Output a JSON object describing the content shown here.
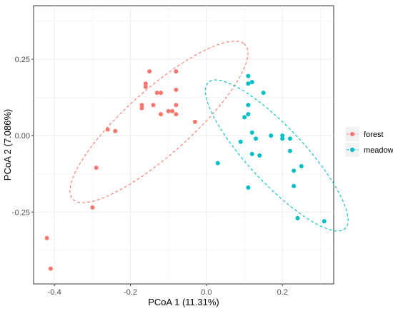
{
  "chart_data": {
    "type": "scatter",
    "xlabel": "PCoA 1 (11.31%)",
    "ylabel": "PCoA 2 (7.086%)",
    "xlim": [
      -0.455,
      0.335
    ],
    "ylim": [
      -0.485,
      0.425
    ],
    "x_ticks": [
      -0.4,
      -0.2,
      0.0,
      0.2
    ],
    "x_tick_labels": [
      "-0.4",
      "-0.2",
      "0.0",
      "0.2"
    ],
    "y_ticks": [
      -0.25,
      0.0,
      0.25
    ],
    "y_tick_labels": [
      "-0.25",
      "0.00",
      "0.25"
    ],
    "grid": true,
    "legend_position": "right",
    "series": [
      {
        "name": "forest",
        "color": "#F8766D",
        "points": [
          [
            -0.15,
            0.21
          ],
          [
            -0.08,
            0.21
          ],
          [
            -0.16,
            0.17
          ],
          [
            -0.13,
            0.14
          ],
          [
            -0.12,
            0.14
          ],
          [
            -0.08,
            0.15
          ],
          [
            -0.16,
            0.16
          ],
          [
            -0.14,
            0.1
          ],
          [
            -0.17,
            0.09
          ],
          [
            -0.17,
            0.1
          ],
          [
            -0.08,
            0.1
          ],
          [
            -0.09,
            0.08
          ],
          [
            -0.1,
            0.08
          ],
          [
            -0.12,
            0.07
          ],
          [
            -0.08,
            0.07
          ],
          [
            -0.03,
            0.045
          ],
          [
            -0.26,
            0.02
          ],
          [
            -0.24,
            0.015
          ],
          [
            -0.29,
            -0.105
          ],
          [
            -0.3,
            -0.235
          ],
          [
            -0.42,
            -0.335
          ],
          [
            -0.41,
            -0.435
          ]
        ],
        "ellipse": {
          "cx": -0.125,
          "cy": 0.045,
          "rx": 0.34,
          "ry": 0.095,
          "angle_deg": 49
        }
      },
      {
        "name": "meadow",
        "color": "#00BFC4",
        "points": [
          [
            0.11,
            0.195
          ],
          [
            0.11,
            0.17
          ],
          [
            0.12,
            0.175
          ],
          [
            0.15,
            0.14
          ],
          [
            0.11,
            0.1
          ],
          [
            0.11,
            0.07
          ],
          [
            0.1,
            0.06
          ],
          [
            0.12,
            0.01
          ],
          [
            0.17,
            0.0
          ],
          [
            0.2,
            0.0
          ],
          [
            0.2,
            -0.01
          ],
          [
            0.22,
            -0.01
          ],
          [
            0.13,
            -0.01
          ],
          [
            0.09,
            -0.02
          ],
          [
            0.22,
            -0.05
          ],
          [
            0.12,
            -0.06
          ],
          [
            0.14,
            -0.065
          ],
          [
            0.03,
            -0.09
          ],
          [
            0.25,
            -0.1
          ],
          [
            0.23,
            -0.115
          ],
          [
            0.11,
            -0.17
          ],
          [
            0.23,
            -0.165
          ],
          [
            0.24,
            -0.27
          ],
          [
            0.31,
            -0.28
          ]
        ],
        "ellipse": {
          "cx": 0.185,
          "cy": -0.065,
          "rx": 0.3,
          "ry": 0.08,
          "angle_deg": -54
        }
      }
    ]
  }
}
